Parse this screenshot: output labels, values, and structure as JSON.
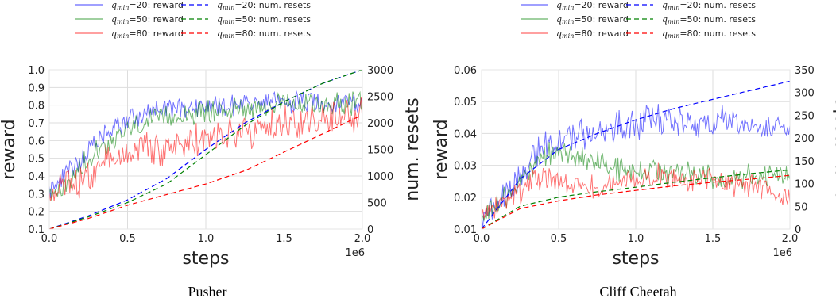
{
  "colors": {
    "blue": "#0000ff",
    "green": "#008000",
    "red": "#ff0000",
    "grid": "#dddddd"
  },
  "legend": {
    "left_col": [
      {
        "math": "q_min = 20",
        "mathlabel": "q",
        "sub": "min",
        "eq": "=20",
        "text": ": reward",
        "color": "blue",
        "dashed": false
      },
      {
        "math": "q_min = 50",
        "mathlabel": "q",
        "sub": "min",
        "eq": "=50",
        "text": ": reward",
        "color": "green",
        "dashed": false
      },
      {
        "math": "q_min = 80",
        "mathlabel": "q",
        "sub": "min",
        "eq": "=80",
        "text": ": reward",
        "color": "red",
        "dashed": false
      }
    ],
    "right_col": [
      {
        "math": "q_min = 20",
        "mathlabel": "q",
        "sub": "min",
        "eq": "=20",
        "text": ": num. resets",
        "color": "blue",
        "dashed": true
      },
      {
        "math": "q_min = 50",
        "mathlabel": "q",
        "sub": "min",
        "eq": "=50",
        "text": ": num. resets",
        "color": "green",
        "dashed": true
      },
      {
        "math": "q_min = 80",
        "mathlabel": "q",
        "sub": "min",
        "eq": "=80",
        "text": ": num. resets",
        "color": "red",
        "dashed": true
      }
    ]
  },
  "chart_data": [
    {
      "type": "line",
      "title": "Pusher",
      "xlabel": "steps",
      "x_multiplier": "1e6",
      "ylabel": "reward",
      "y2label": "num. resets",
      "xlim": [
        0,
        2.0
      ],
      "ylim": [
        0.1,
        1.0
      ],
      "y2lim": [
        0,
        3000
      ],
      "xticks": [
        "0.0",
        "0.5",
        "1.0",
        "1.5",
        "2.0"
      ],
      "yticks": [
        "0.1",
        "0.2",
        "0.3",
        "0.4",
        "0.5",
        "0.6",
        "0.7",
        "0.8",
        "0.9",
        "1.0"
      ],
      "y2ticks": [
        "0",
        "500",
        "1000",
        "1500",
        "2000",
        "2500",
        "3000"
      ],
      "grid": true,
      "reward_series": [
        {
          "name": "q_min=20: reward",
          "color": "blue",
          "x": [
            0,
            0.1,
            0.2,
            0.3,
            0.4,
            0.5,
            0.6,
            0.7,
            0.8,
            0.9,
            1.0,
            1.1,
            1.2,
            1.3,
            1.4,
            1.5,
            1.6,
            1.7,
            1.8,
            1.9,
            2.0
          ],
          "values": [
            0.32,
            0.4,
            0.5,
            0.58,
            0.66,
            0.72,
            0.75,
            0.77,
            0.78,
            0.79,
            0.8,
            0.8,
            0.81,
            0.81,
            0.81,
            0.82,
            0.82,
            0.82,
            0.82,
            0.82,
            0.82
          ],
          "noise": 0.05
        },
        {
          "name": "q_min=50: reward",
          "color": "green",
          "x": [
            0,
            0.1,
            0.2,
            0.3,
            0.4,
            0.5,
            0.6,
            0.7,
            0.8,
            0.9,
            1.0,
            1.1,
            1.2,
            1.3,
            1.4,
            1.5,
            1.6,
            1.7,
            1.8,
            1.9,
            2.0
          ],
          "values": [
            0.28,
            0.33,
            0.45,
            0.55,
            0.6,
            0.66,
            0.7,
            0.72,
            0.74,
            0.75,
            0.76,
            0.77,
            0.78,
            0.79,
            0.8,
            0.8,
            0.8,
            0.81,
            0.81,
            0.81,
            0.81
          ],
          "noise": 0.05
        },
        {
          "name": "q_min=80: reward",
          "color": "red",
          "x": [
            0,
            0.1,
            0.2,
            0.3,
            0.4,
            0.5,
            0.6,
            0.7,
            0.8,
            0.9,
            1.0,
            1.1,
            1.2,
            1.3,
            1.4,
            1.5,
            1.6,
            1.7,
            1.8,
            1.9,
            2.0
          ],
          "values": [
            0.27,
            0.32,
            0.38,
            0.44,
            0.5,
            0.54,
            0.56,
            0.57,
            0.58,
            0.6,
            0.62,
            0.63,
            0.64,
            0.65,
            0.67,
            0.69,
            0.7,
            0.71,
            0.72,
            0.73,
            0.75
          ],
          "noise": 0.08
        }
      ],
      "resets_series": [
        {
          "name": "q_min=20: num. resets",
          "color": "blue",
          "x": [
            0,
            0.25,
            0.5,
            0.75,
            1.0,
            1.25,
            1.5,
            1.75,
            2.0
          ],
          "values": [
            0,
            250,
            550,
            950,
            1500,
            2000,
            2400,
            2750,
            3000
          ]
        },
        {
          "name": "q_min=50: num. resets",
          "color": "green",
          "x": [
            0,
            0.25,
            0.5,
            0.75,
            1.0,
            1.25,
            1.5,
            1.75,
            2.0
          ],
          "values": [
            0,
            230,
            500,
            850,
            1400,
            1950,
            2400,
            2750,
            3000
          ]
        },
        {
          "name": "q_min=80: num. resets",
          "color": "red",
          "x": [
            0,
            0.25,
            0.5,
            0.75,
            1.0,
            1.25,
            1.5,
            1.75,
            2.0
          ],
          "values": [
            0,
            200,
            450,
            650,
            850,
            1100,
            1450,
            1800,
            2150
          ]
        }
      ]
    },
    {
      "type": "line",
      "title": "Cliff Cheetah",
      "xlabel": "steps",
      "x_multiplier": "1e6",
      "ylabel": "reward",
      "y2label": "num. resets",
      "xlim": [
        0,
        2.0
      ],
      "ylim": [
        0.01,
        0.06
      ],
      "y2lim": [
        0,
        350
      ],
      "xticks": [
        "0.0",
        "0.5",
        "1.0",
        "1.5",
        "2.0"
      ],
      "yticks": [
        "0.01",
        "0.02",
        "0.03",
        "0.04",
        "0.05",
        "0.06"
      ],
      "y2ticks": [
        "0",
        "50",
        "100",
        "150",
        "200",
        "250",
        "300",
        "350"
      ],
      "grid": true,
      "reward_series": [
        {
          "name": "q_min=20: reward",
          "color": "blue",
          "x": [
            0,
            0.1,
            0.2,
            0.3,
            0.4,
            0.5,
            0.6,
            0.7,
            0.8,
            0.9,
            1.0,
            1.1,
            1.2,
            1.3,
            1.4,
            1.5,
            1.6,
            1.7,
            1.8,
            1.9,
            2.0
          ],
          "values": [
            0.014,
            0.018,
            0.024,
            0.03,
            0.036,
            0.038,
            0.039,
            0.04,
            0.041,
            0.042,
            0.043,
            0.045,
            0.044,
            0.043,
            0.044,
            0.043,
            0.044,
            0.043,
            0.042,
            0.043,
            0.042
          ],
          "noise": 0.004
        },
        {
          "name": "q_min=50: reward",
          "color": "green",
          "x": [
            0,
            0.1,
            0.2,
            0.3,
            0.4,
            0.5,
            0.6,
            0.7,
            0.8,
            0.9,
            1.0,
            1.1,
            1.2,
            1.3,
            1.4,
            1.5,
            1.6,
            1.7,
            1.8,
            1.9,
            2.0
          ],
          "values": [
            0.015,
            0.018,
            0.022,
            0.027,
            0.033,
            0.034,
            0.033,
            0.032,
            0.03,
            0.029,
            0.028,
            0.029,
            0.028,
            0.027,
            0.027,
            0.026,
            0.025,
            0.026,
            0.027,
            0.027,
            0.027
          ],
          "noise": 0.003
        },
        {
          "name": "q_min=80: reward",
          "color": "red",
          "x": [
            0,
            0.1,
            0.2,
            0.3,
            0.4,
            0.5,
            0.6,
            0.7,
            0.8,
            0.9,
            1.0,
            1.1,
            1.2,
            1.3,
            1.4,
            1.5,
            1.6,
            1.7,
            1.8,
            1.9,
            2.0
          ],
          "values": [
            0.014,
            0.017,
            0.02,
            0.024,
            0.026,
            0.025,
            0.024,
            0.023,
            0.024,
            0.025,
            0.026,
            0.027,
            0.026,
            0.025,
            0.025,
            0.025,
            0.024,
            0.024,
            0.023,
            0.022,
            0.021
          ],
          "noise": 0.003
        }
      ],
      "resets_series": [
        {
          "name": "q_min=20: num. resets",
          "color": "blue",
          "x": [
            0,
            0.25,
            0.5,
            0.75,
            1.0,
            1.25,
            1.5,
            1.75,
            2.0
          ],
          "values": [
            0,
            110,
            175,
            210,
            240,
            265,
            285,
            305,
            325
          ]
        },
        {
          "name": "q_min=50: num. resets",
          "color": "green",
          "x": [
            0,
            0.25,
            0.5,
            0.75,
            1.0,
            1.25,
            1.5,
            1.75,
            2.0
          ],
          "values": [
            0,
            50,
            70,
            82,
            92,
            103,
            113,
            122,
            130
          ]
        },
        {
          "name": "q_min=80: num. resets",
          "color": "red",
          "x": [
            0,
            0.25,
            0.5,
            0.75,
            1.0,
            1.25,
            1.5,
            1.75,
            2.0
          ],
          "values": [
            0,
            45,
            62,
            75,
            85,
            95,
            103,
            110,
            118
          ]
        }
      ]
    }
  ]
}
